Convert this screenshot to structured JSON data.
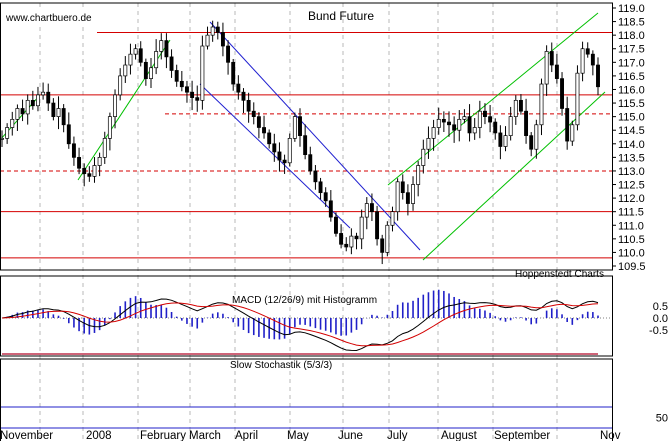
{
  "watermark": "www.chartbuero.de",
  "credit": "Hoppenstedt Charts",
  "chart_data": [
    {
      "type": "candlestick",
      "title": "Bund Future",
      "ylim": [
        109.5,
        119.0
      ],
      "y_ticks": [
        "109.5",
        "110.0",
        "110.5",
        "111.0",
        "111.5",
        "112.0",
        "112.5",
        "113.0",
        "113.5",
        "114.0",
        "114.5",
        "115.0",
        "115.5",
        "116.0",
        "116.5",
        "117.0",
        "117.5",
        "118.0",
        "118.5",
        "119.0"
      ],
      "x_months": [
        "November",
        "2008",
        "February",
        "March",
        "April",
        "May",
        "June",
        "July",
        "August",
        "September",
        "Nov"
      ],
      "close_series": [
        114.2,
        114.6,
        114.9,
        115.3,
        115.1,
        115.6,
        115.4,
        115.8,
        115.9,
        115.5,
        115.0,
        115.3,
        114.7,
        114.0,
        113.5,
        113.1,
        112.9,
        112.8,
        113.2,
        113.5,
        114.2,
        115.0,
        115.8,
        116.5,
        116.9,
        117.3,
        117.5,
        117.0,
        116.4,
        116.8,
        117.4,
        117.8,
        117.2,
        116.7,
        116.3,
        116.1,
        115.9,
        115.7,
        115.6,
        117.6,
        118.0,
        118.3,
        118.1,
        117.6,
        117.0,
        116.2,
        115.9,
        115.6,
        115.2,
        115.0,
        114.6,
        114.4,
        114.0,
        113.7,
        113.4,
        113.3,
        114.2,
        115.0,
        114.3,
        113.6,
        113.0,
        112.6,
        112.2,
        111.9,
        111.3,
        110.7,
        110.3,
        110.2,
        110.6,
        110.5,
        111.3,
        111.8,
        111.5,
        110.5,
        110.0,
        111.0,
        111.5,
        112.6,
        112.2,
        111.8,
        112.5,
        113.2,
        113.8,
        114.2,
        114.6,
        114.9,
        114.8,
        114.7,
        114.5,
        114.9,
        115.0,
        114.4,
        114.6,
        115.2,
        115.0,
        114.8,
        114.4,
        113.9,
        114.3,
        115.0,
        115.6,
        115.2,
        114.3,
        113.8,
        114.7,
        116.2,
        117.4,
        116.9,
        116.4,
        115.3,
        114.1,
        114.7,
        116.6,
        117.5,
        117.3,
        116.9,
        116.1
      ],
      "horizontal_levels_solid": [
        118.1,
        115.8,
        111.5,
        109.8
      ],
      "horizontal_levels_dashed": [
        115.1,
        113.0
      ]
    },
    {
      "type": "line",
      "title": "MACD (12/26/9) mit Histogramm",
      "y_ticks": [
        "0.5",
        "0.0",
        "-0.5"
      ]
    },
    {
      "type": "line",
      "title": "Slow Stochastik (5/3/3)",
      "y_ticks": [
        "50"
      ]
    }
  ]
}
